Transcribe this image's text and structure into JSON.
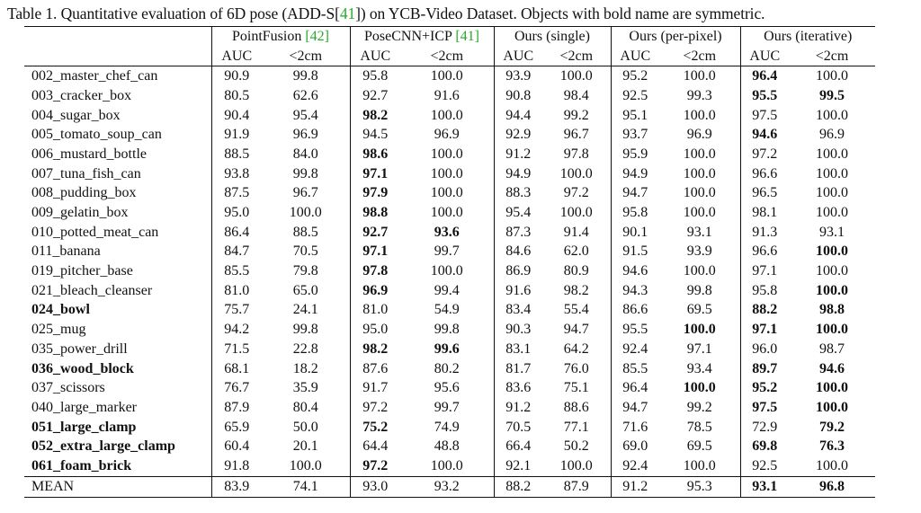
{
  "caption": {
    "prefix": "Table 1. Quantitative evaluation of 6D pose (ADD-S[",
    "ref": "41",
    "suffix": "]) on YCB-Video Dataset. Objects with bold name are symmetric."
  },
  "methods": [
    {
      "name": "PointFusion ",
      "ref": "[42]"
    },
    {
      "name": "PoseCNN+ICP ",
      "ref": "[41]"
    },
    {
      "name": "Ours (single)",
      "ref": ""
    },
    {
      "name": "Ours (per-pixel)",
      "ref": ""
    },
    {
      "name": "Ours (iterative)",
      "ref": ""
    }
  ],
  "metrics": [
    "AUC",
    "<2cm"
  ],
  "rows": [
    {
      "name": "002_master_chef_can",
      "sym": false,
      "v": [
        "90.9",
        "99.8",
        "95.8",
        "100.0",
        "93.9",
        "100.0",
        "95.2",
        "100.0",
        "96.4",
        "100.0"
      ],
      "b": [
        8
      ]
    },
    {
      "name": "003_cracker_box",
      "sym": false,
      "v": [
        "80.5",
        "62.6",
        "92.7",
        "91.6",
        "90.8",
        "98.4",
        "92.5",
        "99.3",
        "95.5",
        "99.5"
      ],
      "b": [
        8,
        9
      ]
    },
    {
      "name": "004_sugar_box",
      "sym": false,
      "v": [
        "90.4",
        "95.4",
        "98.2",
        "100.0",
        "94.4",
        "99.2",
        "95.1",
        "100.0",
        "97.5",
        "100.0"
      ],
      "b": [
        2
      ]
    },
    {
      "name": "005_tomato_soup_can",
      "sym": false,
      "v": [
        "91.9",
        "96.9",
        "94.5",
        "96.9",
        "92.9",
        "96.7",
        "93.7",
        "96.9",
        "94.6",
        "96.9"
      ],
      "b": [
        8
      ]
    },
    {
      "name": "006_mustard_bottle",
      "sym": false,
      "v": [
        "88.5",
        "84.0",
        "98.6",
        "100.0",
        "91.2",
        "97.8",
        "95.9",
        "100.0",
        "97.2",
        "100.0"
      ],
      "b": [
        2
      ]
    },
    {
      "name": "007_tuna_fish_can",
      "sym": false,
      "v": [
        "93.8",
        "99.8",
        "97.1",
        "100.0",
        "94.9",
        "100.0",
        "94.9",
        "100.0",
        "96.6",
        "100.0"
      ],
      "b": [
        2
      ]
    },
    {
      "name": "008_pudding_box",
      "sym": false,
      "v": [
        "87.5",
        "96.7",
        "97.9",
        "100.0",
        "88.3",
        "97.2",
        "94.7",
        "100.0",
        "96.5",
        "100.0"
      ],
      "b": [
        2
      ]
    },
    {
      "name": "009_gelatin_box",
      "sym": false,
      "v": [
        "95.0",
        "100.0",
        "98.8",
        "100.0",
        "95.4",
        "100.0",
        "95.8",
        "100.0",
        "98.1",
        "100.0"
      ],
      "b": [
        2
      ]
    },
    {
      "name": "010_potted_meat_can",
      "sym": false,
      "v": [
        "86.4",
        "88.5",
        "92.7",
        "93.6",
        "87.3",
        "91.4",
        "90.1",
        "93.1",
        "91.3",
        "93.1"
      ],
      "b": [
        2,
        3
      ]
    },
    {
      "name": "011_banana",
      "sym": false,
      "v": [
        "84.7",
        "70.5",
        "97.1",
        "99.7",
        "84.6",
        "62.0",
        "91.5",
        "93.9",
        "96.6",
        "100.0"
      ],
      "b": [
        2,
        9
      ]
    },
    {
      "name": "019_pitcher_base",
      "sym": false,
      "v": [
        "85.5",
        "79.8",
        "97.8",
        "100.0",
        "86.9",
        "80.9",
        "94.6",
        "100.0",
        "97.1",
        "100.0"
      ],
      "b": [
        2
      ]
    },
    {
      "name": "021_bleach_cleanser",
      "sym": false,
      "v": [
        "81.0",
        "65.0",
        "96.9",
        "99.4",
        "91.6",
        "98.2",
        "94.3",
        "99.8",
        "95.8",
        "100.0"
      ],
      "b": [
        2,
        9
      ]
    },
    {
      "name": "024_bowl",
      "sym": true,
      "v": [
        "75.7",
        "24.1",
        "81.0",
        "54.9",
        "83.4",
        "55.4",
        "86.6",
        "69.5",
        "88.2",
        "98.8"
      ],
      "b": [
        8,
        9
      ]
    },
    {
      "name": "025_mug",
      "sym": false,
      "v": [
        "94.2",
        "99.8",
        "95.0",
        "99.8",
        "90.3",
        "94.7",
        "95.5",
        "100.0",
        "97.1",
        "100.0"
      ],
      "b": [
        7,
        8,
        9
      ]
    },
    {
      "name": "035_power_drill",
      "sym": false,
      "v": [
        "71.5",
        "22.8",
        "98.2",
        "99.6",
        "83.1",
        "64.2",
        "92.4",
        "97.1",
        "96.0",
        "98.7"
      ],
      "b": [
        2,
        3
      ]
    },
    {
      "name": "036_wood_block",
      "sym": true,
      "v": [
        "68.1",
        "18.2",
        "87.6",
        "80.2",
        "81.7",
        "76.0",
        "85.5",
        "93.4",
        "89.7",
        "94.6"
      ],
      "b": [
        8,
        9
      ]
    },
    {
      "name": "037_scissors",
      "sym": false,
      "v": [
        "76.7",
        "35.9",
        "91.7",
        "95.6",
        "83.6",
        "75.1",
        "96.4",
        "100.0",
        "95.2",
        "100.0"
      ],
      "b": [
        7,
        8,
        9
      ]
    },
    {
      "name": "040_large_marker",
      "sym": false,
      "v": [
        "87.9",
        "80.4",
        "97.2",
        "99.7",
        "91.2",
        "88.6",
        "94.7",
        "99.2",
        "97.5",
        "100.0"
      ],
      "b": [
        8,
        9
      ]
    },
    {
      "name": "051_large_clamp",
      "sym": true,
      "v": [
        "65.9",
        "50.0",
        "75.2",
        "74.9",
        "70.5",
        "77.1",
        "71.6",
        "78.5",
        "72.9",
        "79.2"
      ],
      "b": [
        2,
        9
      ]
    },
    {
      "name": "052_extra_large_clamp",
      "sym": true,
      "v": [
        "60.4",
        "20.1",
        "64.4",
        "48.8",
        "66.4",
        "50.2",
        "69.0",
        "69.5",
        "69.8",
        "76.3"
      ],
      "b": [
        8,
        9
      ]
    },
    {
      "name": "061_foam_brick",
      "sym": true,
      "v": [
        "91.8",
        "100.0",
        "97.2",
        "100.0",
        "92.1",
        "100.0",
        "92.4",
        "100.0",
        "92.5",
        "100.0"
      ],
      "b": [
        2
      ]
    }
  ],
  "mean": {
    "name": "MEAN",
    "v": [
      "83.9",
      "74.1",
      "93.0",
      "93.2",
      "88.2",
      "87.9",
      "91.2",
      "95.3",
      "93.1",
      "96.8"
    ],
    "b": [
      8,
      9
    ]
  }
}
